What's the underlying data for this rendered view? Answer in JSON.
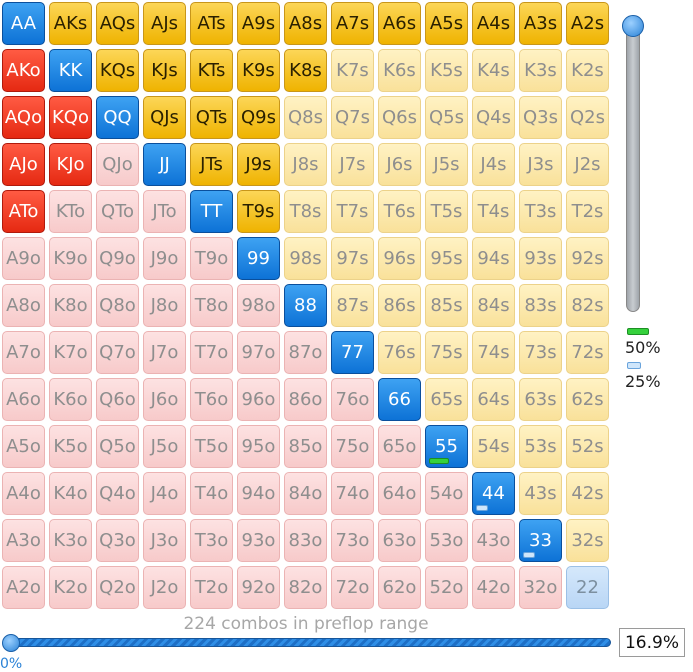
{
  "grid": {
    "ranks": [
      "A",
      "K",
      "Q",
      "J",
      "T",
      "9",
      "8",
      "7",
      "6",
      "5",
      "4",
      "3",
      "2"
    ],
    "selected": [
      "AA",
      "AKs",
      "AQs",
      "AJs",
      "ATs",
      "A9s",
      "A8s",
      "A7s",
      "A6s",
      "A5s",
      "A4s",
      "A3s",
      "A2s",
      "AKo",
      "KK",
      "KQs",
      "KJs",
      "KTs",
      "K9s",
      "K8s",
      "AQo",
      "KQo",
      "QQ",
      "QJs",
      "QTs",
      "Q9s",
      "AJo",
      "KJo",
      "JJ",
      "JTs",
      "J9s",
      "ATo",
      "TT",
      "T9s",
      "99",
      "88",
      "77",
      "66",
      "55",
      "44",
      "33"
    ],
    "partial": {
      "55": "green",
      "44": "blue",
      "33": "blue"
    },
    "colors": {
      "pair": "#1a7fe0",
      "suited": "#f5c21b",
      "offsuit": "#f23c22"
    }
  },
  "vertical_slider": {
    "level": 1.0
  },
  "legend": [
    {
      "label": "50%",
      "color": "#35d13c"
    },
    {
      "label": "25%",
      "color": "#cfe6fb"
    }
  ],
  "footer": {
    "combos_text": "224 combos in preflop range",
    "percent_value": "16.9%",
    "min_label": "0%",
    "range_slider_level": 0.0
  }
}
